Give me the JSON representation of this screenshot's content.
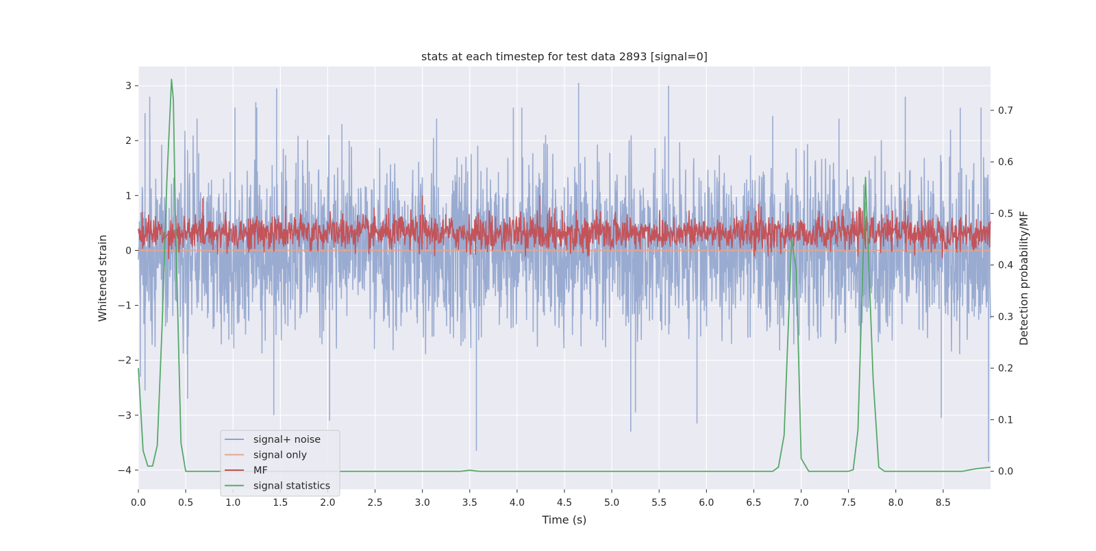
{
  "chart_data": {
    "type": "line",
    "title": "stats at each timestep for test data 2893 [signal=0]",
    "xlabel": "Time (s)",
    "ylabel_left": "Whitened strain",
    "ylabel_right": "Detection probability/MF",
    "xlim": [
      0.0,
      9.0
    ],
    "ylim_left": [
      -4.35,
      3.35
    ],
    "ylim_right": [
      -0.035,
      0.785
    ],
    "x_ticks": [
      0.0,
      0.5,
      1.0,
      1.5,
      2.0,
      2.5,
      3.0,
      3.5,
      4.0,
      4.5,
      5.0,
      5.5,
      6.0,
      6.5,
      7.0,
      7.5,
      8.0,
      8.5
    ],
    "x_tick_labels": [
      "0.0",
      "0.5",
      "1.0",
      "1.5",
      "2.0",
      "2.5",
      "3.0",
      "3.5",
      "4.0",
      "4.5",
      "5.0",
      "5.5",
      "6.0",
      "6.5",
      "7.0",
      "7.5",
      "8.0",
      "8.5"
    ],
    "y_ticks_left": [
      -4,
      -3,
      -2,
      -1,
      0,
      1,
      2,
      3
    ],
    "y_tick_labels_left": [
      "−4",
      "−3",
      "−2",
      "−1",
      "0",
      "1",
      "2",
      "3"
    ],
    "y_ticks_right": [
      0.0,
      0.1,
      0.2,
      0.3,
      0.4,
      0.5,
      0.6,
      0.7
    ],
    "y_tick_labels_right": [
      "0.0",
      "0.1",
      "0.2",
      "0.3",
      "0.4",
      "0.5",
      "0.6",
      "0.7"
    ],
    "grid": true,
    "legend_position": "lower-left",
    "background_color": "#eaeaf2",
    "grid_color": "#ffffff",
    "series": [
      {
        "name": "signal+ noise",
        "axis": "left",
        "color": "#8da2cc",
        "kind": "dense noise",
        "noise_band": [
          -1.2,
          1.6
        ],
        "spikes": [
          {
            "x": 0.07,
            "y": 2.5
          },
          {
            "x": 0.12,
            "y": 2.8
          },
          {
            "x": 0.62,
            "y": 2.4
          },
          {
            "x": 1.02,
            "y": 2.6
          },
          {
            "x": 1.25,
            "y": 2.6
          },
          {
            "x": 1.24,
            "y": 2.7
          },
          {
            "x": 1.46,
            "y": 2.95
          },
          {
            "x": 2.15,
            "y": 2.3
          },
          {
            "x": 3.15,
            "y": 2.4
          },
          {
            "x": 3.96,
            "y": 2.6
          },
          {
            "x": 4.05,
            "y": 2.6
          },
          {
            "x": 4.65,
            "y": 3.05
          },
          {
            "x": 5.6,
            "y": 3.0
          },
          {
            "x": 6.7,
            "y": 2.45
          },
          {
            "x": 7.4,
            "y": 2.4
          },
          {
            "x": 8.1,
            "y": 2.8
          },
          {
            "x": 8.68,
            "y": 2.6
          },
          {
            "x": 8.9,
            "y": 2.6
          },
          {
            "x": 0.02,
            "y": -2.3
          },
          {
            "x": 0.07,
            "y": -2.55
          },
          {
            "x": 0.52,
            "y": -2.7
          },
          {
            "x": 1.43,
            "y": -3.0
          },
          {
            "x": 2.02,
            "y": -3.1
          },
          {
            "x": 3.57,
            "y": -3.65
          },
          {
            "x": 5.2,
            "y": -3.3
          },
          {
            "x": 5.25,
            "y": -2.95
          },
          {
            "x": 5.9,
            "y": -3.15
          },
          {
            "x": 8.48,
            "y": -3.05
          },
          {
            "x": 8.98,
            "y": -3.85
          }
        ]
      },
      {
        "name": "signal only",
        "axis": "left",
        "color": "#e8a58a",
        "x": [
          0.0,
          9.0
        ],
        "y": [
          0.0,
          0.0
        ]
      },
      {
        "name": "MF",
        "axis": "left",
        "color": "#c44e52",
        "kind": "dense noise",
        "noise_band": [
          0.0,
          0.65
        ],
        "spikes": [
          {
            "x": 0.68,
            "y": 0.95
          },
          {
            "x": 3.0,
            "y": 1.0
          },
          {
            "x": 4.24,
            "y": 1.0
          },
          {
            "x": 6.55,
            "y": 0.85
          },
          {
            "x": 8.1,
            "y": 0.9
          }
        ]
      },
      {
        "name": "signal statistics",
        "axis": "right",
        "color": "#55a868",
        "x": [
          0.0,
          0.05,
          0.1,
          0.15,
          0.2,
          0.25,
          0.3,
          0.35,
          0.37,
          0.39,
          0.45,
          0.5,
          0.55,
          1.0,
          2.0,
          3.0,
          3.4,
          3.5,
          3.6,
          4.0,
          5.0,
          6.0,
          6.5,
          6.7,
          6.76,
          6.82,
          6.9,
          6.95,
          7.0,
          7.08,
          7.2,
          7.5,
          7.55,
          7.6,
          7.68,
          7.76,
          7.82,
          7.88,
          8.0,
          8.5,
          8.7,
          8.85,
          9.0
        ],
        "y": [
          0.2,
          0.04,
          0.01,
          0.01,
          0.05,
          0.28,
          0.56,
          0.76,
          0.72,
          0.5,
          0.055,
          0.0,
          0.0,
          0.0,
          0.0,
          0.0,
          0.0,
          0.002,
          0.0,
          0.0,
          0.0,
          0.0,
          0.0,
          0.0,
          0.008,
          0.07,
          0.45,
          0.39,
          0.025,
          0.0,
          0.0,
          0.0,
          0.003,
          0.08,
          0.57,
          0.18,
          0.008,
          0.0,
          0.0,
          0.0,
          0.0,
          0.005,
          0.008
        ]
      }
    ]
  }
}
